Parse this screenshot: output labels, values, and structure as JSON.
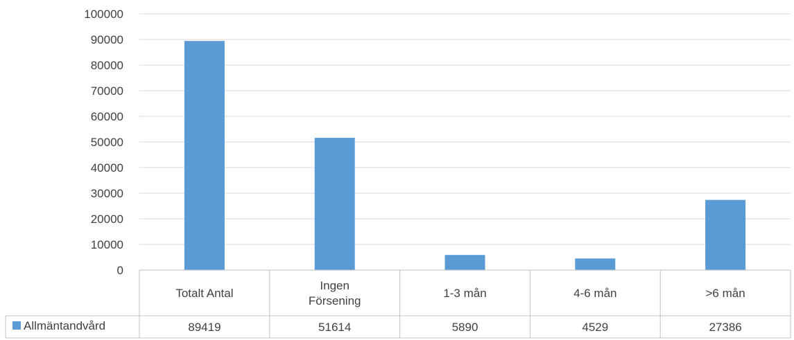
{
  "chart_data": {
    "type": "bar",
    "title": "",
    "xlabel": "",
    "ylabel": "",
    "categories": [
      [
        "Totalt Antal"
      ],
      [
        "Ingen",
        "Försening"
      ],
      [
        "1-3 mån"
      ],
      [
        "4-6 mån"
      ],
      [
        ">6 mån"
      ]
    ],
    "series": [
      {
        "name": "Allmäntandvård",
        "values": [
          89419,
          51614,
          5890,
          4529,
          27386
        ],
        "color": "#5b9bd5"
      }
    ],
    "ylim": [
      0,
      100000
    ],
    "yticks": [
      0,
      10000,
      20000,
      30000,
      40000,
      50000,
      60000,
      70000,
      80000,
      90000,
      100000
    ],
    "grid": true,
    "legend": "data-table-left",
    "data_table": true
  }
}
